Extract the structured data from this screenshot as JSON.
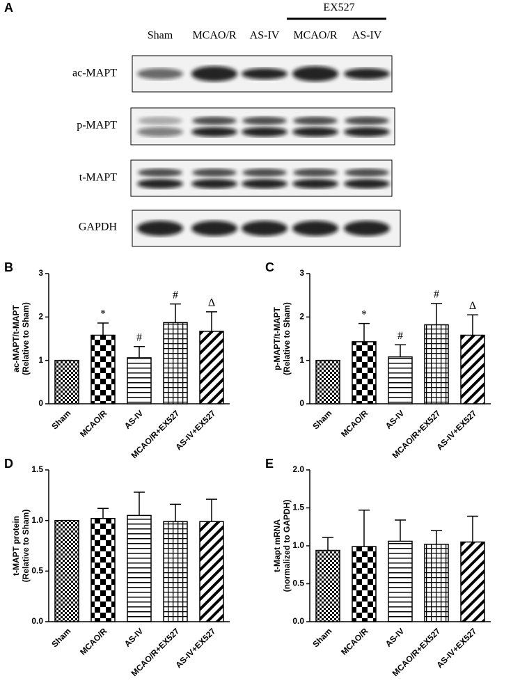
{
  "blot": {
    "panel": "A",
    "group_label": "EX527",
    "lanes": [
      "Sham",
      "MCAO/R",
      "AS-IV",
      "MCAO/R",
      "AS-IV"
    ],
    "rows": [
      "ac-MAPT",
      "p-MAPT",
      "t-MAPT",
      "GAPDH"
    ]
  },
  "chart_data": [
    {
      "type": "bar",
      "panel": "B",
      "ylabel": [
        "ac-MAPT/t-MAPT",
        "(Relative to Sham)"
      ],
      "categories": [
        "Sham",
        "MCAO/R",
        "AS-IV",
        "MCAO/R+EX527",
        "AS-IV+EX527"
      ],
      "values": [
        1,
        1.58,
        1.06,
        1.87,
        1.67
      ],
      "errors": [
        0,
        0.28,
        0.26,
        0.43,
        0.45
      ],
      "marks": [
        null,
        "*",
        "#",
        "#",
        "Δ"
      ],
      "ylim": [
        0,
        3
      ],
      "yticks": [
        0,
        1,
        2,
        3
      ],
      "color": "#000000"
    },
    {
      "type": "bar",
      "panel": "C",
      "ylabel": [
        "p-MAPT/t-MAPT",
        "(Relative to Sham)"
      ],
      "categories": [
        "Sham",
        "MCAO/R",
        "AS-IV",
        "MCAO/R+EX527",
        "AS-IV+EX527"
      ],
      "values": [
        1,
        1.43,
        1.08,
        1.82,
        1.58
      ],
      "errors": [
        0,
        0.42,
        0.28,
        0.49,
        0.47
      ],
      "marks": [
        null,
        "*",
        "#",
        "#",
        "Δ"
      ],
      "ylim": [
        0,
        3
      ],
      "yticks": [
        0,
        1,
        2,
        3
      ],
      "color": "#000000"
    },
    {
      "type": "bar",
      "panel": "D",
      "ylabel": [
        "t-MAPT protein",
        "(Relative to Sham)"
      ],
      "categories": [
        "Sham",
        "MCAO/R",
        "AS-IV",
        "MCAO/R+EX527",
        "AS-IV+EX527"
      ],
      "values": [
        1,
        1.02,
        1.05,
        0.99,
        0.99
      ],
      "errors": [
        0,
        0.1,
        0.23,
        0.17,
        0.22
      ],
      "ylim": [
        0,
        1.5
      ],
      "yticks": [
        {
          "value": 0,
          "label": "0.0"
        },
        0.5,
        {
          "value": 1,
          "label": "1.0"
        },
        1.5
      ],
      "color": "#000000"
    },
    {
      "type": "bar",
      "panel": "E",
      "ylabel": [
        "t-Mapt mRNA",
        "(normalized to GAPDH)"
      ],
      "categories": [
        "Sham",
        "MCAO/R",
        "AS-IV",
        "MCAO/R+EX527",
        "AS-IV+EX527"
      ],
      "values": [
        0.94,
        0.99,
        1.06,
        1.02,
        1.05
      ],
      "errors": [
        0.17,
        0.48,
        0.28,
        0.18,
        0.34
      ],
      "ylim": [
        0,
        2
      ],
      "yticks": [
        {
          "value": 0,
          "label": "0.0"
        },
        0.5,
        {
          "value": 1,
          "label": "1.0"
        },
        1.5,
        {
          "value": 2,
          "label": "2.0"
        }
      ],
      "color": "#000000"
    }
  ]
}
